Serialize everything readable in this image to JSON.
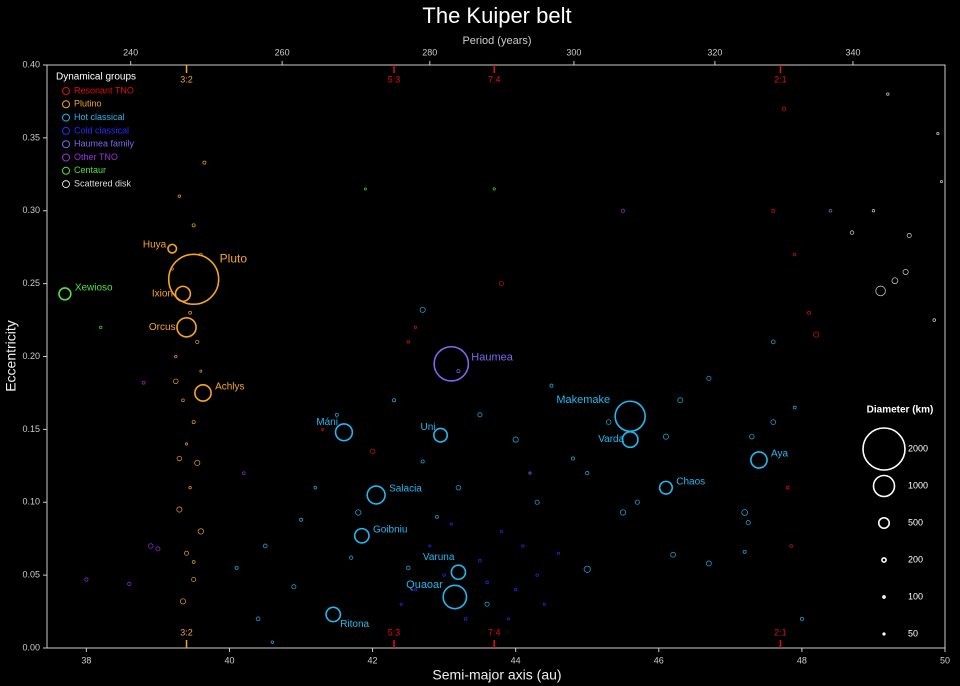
{
  "chart_data": {
    "type": "scatter",
    "title": "The Kuiper belt",
    "x_label": "Semi-major axis (au)",
    "y_label": "Eccentricity",
    "x2_label": "Period (years)",
    "xlim": [
      37.45,
      50
    ],
    "ylim": [
      0,
      0.4
    ],
    "xticks": [
      38,
      40,
      42,
      44,
      46,
      48,
      50
    ],
    "yticks": [
      {
        "value": 0,
        "label": "0.00"
      },
      {
        "value": 0.05,
        "label": "0.05"
      },
      {
        "value": 0.1,
        "label": "0.10"
      },
      {
        "value": 0.15,
        "label": "0.15"
      },
      {
        "value": 0.2,
        "label": "0.20"
      },
      {
        "value": 0.25,
        "label": "0.25"
      },
      {
        "value": 0.3,
        "label": "0.30"
      },
      {
        "value": 0.35,
        "label": "0.35"
      },
      {
        "value": 0.4,
        "label": "0.40"
      }
    ],
    "x2ticks": [
      240,
      260,
      280,
      300,
      320,
      340
    ],
    "legend_title": "Dynamical groups",
    "resonances": [
      {
        "label": "3:2",
        "x": 39.4,
        "color": "#f5a623"
      },
      {
        "label": "5:3",
        "x": 42.3,
        "color": "#e01010"
      },
      {
        "label": "7:4",
        "x": 43.7,
        "color": "#e01010"
      },
      {
        "label": "2:1",
        "x": 47.7,
        "color": "#e01010"
      }
    ],
    "size_legend": {
      "title": "Diameter (km)",
      "values": [
        2000,
        1000,
        500,
        200,
        100,
        50
      ]
    },
    "series": [
      {
        "name": "Resonant TNO",
        "color": "#e01010",
        "points": [
          [
            42.5,
            0.21,
            120
          ],
          [
            43.8,
            0.25,
            200
          ],
          [
            47.75,
            0.37,
            150
          ],
          [
            47.6,
            0.3,
            150
          ],
          [
            48.2,
            0.215,
            250
          ],
          [
            48.1,
            0.23,
            150
          ],
          [
            47.9,
            0.27,
            130
          ],
          [
            42.0,
            0.135,
            220
          ],
          [
            42.6,
            0.22,
            110
          ],
          [
            47.8,
            0.11,
            140
          ],
          [
            47.85,
            0.07,
            130
          ],
          [
            41.3,
            0.15,
            100
          ]
        ],
        "named": []
      },
      {
        "name": "Plutino",
        "color": "#f5a623",
        "points": [
          [
            39.3,
            0.31,
            120
          ],
          [
            39.5,
            0.29,
            150
          ],
          [
            39.6,
            0.27,
            130
          ],
          [
            39.2,
            0.26,
            110
          ],
          [
            39.45,
            0.23,
            140
          ],
          [
            39.55,
            0.21,
            160
          ],
          [
            39.25,
            0.2,
            120
          ],
          [
            39.6,
            0.19,
            100
          ],
          [
            39.35,
            0.17,
            130
          ],
          [
            39.5,
            0.155,
            150
          ],
          [
            39.4,
            0.14,
            110
          ],
          [
            39.3,
            0.13,
            220
          ],
          [
            39.55,
            0.127,
            250
          ],
          [
            39.45,
            0.11,
            120
          ],
          [
            39.3,
            0.095,
            250
          ],
          [
            39.6,
            0.08,
            260
          ],
          [
            39.4,
            0.065,
            200
          ],
          [
            39.5,
            0.047,
            200
          ],
          [
            39.35,
            0.032,
            250
          ],
          [
            39.65,
            0.333,
            150
          ],
          [
            39.25,
            0.183,
            220
          ],
          [
            39.5,
            0.059,
            140
          ]
        ],
        "named": [
          {
            "name": "Huya",
            "x": 39.2,
            "y": 0.274,
            "size": 406
          },
          {
            "name": "Pluto",
            "x": 39.5,
            "y": 0.253,
            "size": 2377
          },
          {
            "name": "Ixion",
            "x": 39.35,
            "y": 0.243,
            "size": 710
          },
          {
            "name": "Orcus",
            "x": 39.4,
            "y": 0.22,
            "size": 910
          },
          {
            "name": "Achlys",
            "x": 39.63,
            "y": 0.175,
            "size": 772
          }
        ]
      },
      {
        "name": "Hot classical",
        "color": "#22b8f0",
        "points": [
          [
            42.7,
            0.232,
            250
          ],
          [
            41.5,
            0.16,
            150
          ],
          [
            42.3,
            0.17,
            150
          ],
          [
            43.5,
            0.16,
            200
          ],
          [
            44.0,
            0.143,
            250
          ],
          [
            44.5,
            0.18,
            150
          ],
          [
            45.3,
            0.155,
            220
          ],
          [
            46.3,
            0.17,
            240
          ],
          [
            46.7,
            0.185,
            200
          ],
          [
            47.3,
            0.145,
            220
          ],
          [
            47.6,
            0.155,
            230
          ],
          [
            46.1,
            0.145,
            250
          ],
          [
            45.0,
            0.12,
            160
          ],
          [
            44.3,
            0.1,
            200
          ],
          [
            43.2,
            0.11,
            220
          ],
          [
            42.7,
            0.128,
            150
          ],
          [
            41.8,
            0.093,
            260
          ],
          [
            41.0,
            0.088,
            150
          ],
          [
            40.5,
            0.07,
            180
          ],
          [
            40.1,
            0.055,
            150
          ],
          [
            40.9,
            0.042,
            200
          ],
          [
            41.7,
            0.062,
            160
          ],
          [
            42.5,
            0.055,
            170
          ],
          [
            43.6,
            0.03,
            200
          ],
          [
            45.0,
            0.054,
            300
          ],
          [
            45.5,
            0.093,
            260
          ],
          [
            45.7,
            0.1,
            200
          ],
          [
            46.2,
            0.064,
            230
          ],
          [
            46.7,
            0.058,
            240
          ],
          [
            47.2,
            0.093,
            280
          ],
          [
            47.25,
            0.086,
            200
          ],
          [
            47.2,
            0.066,
            150
          ],
          [
            48.0,
            0.02,
            150
          ],
          [
            40.4,
            0.02,
            180
          ],
          [
            41.2,
            0.11,
            130
          ],
          [
            42.9,
            0.09,
            140
          ],
          [
            44.8,
            0.13,
            150
          ],
          [
            47.9,
            0.165,
            140
          ],
          [
            40.6,
            0.004,
            120
          ],
          [
            47.6,
            0.21,
            180
          ]
        ],
        "named": [
          {
            "name": "Máni",
            "x": 41.6,
            "y": 0.148,
            "size": 800
          },
          {
            "name": "Uni",
            "x": 42.95,
            "y": 0.146,
            "size": 640
          },
          {
            "name": "Makemake",
            "x": 45.6,
            "y": 0.159,
            "size": 1430
          },
          {
            "name": "Varda",
            "x": 45.6,
            "y": 0.143,
            "size": 740
          },
          {
            "name": "Aya",
            "x": 47.4,
            "y": 0.129,
            "size": 770
          },
          {
            "name": "Chaos",
            "x": 46.1,
            "y": 0.11,
            "size": 600
          },
          {
            "name": "Salacia",
            "x": 42.05,
            "y": 0.105,
            "size": 850
          },
          {
            "name": "Goibniu",
            "x": 41.85,
            "y": 0.077,
            "size": 680
          },
          {
            "name": "Varuna",
            "x": 43.2,
            "y": 0.052,
            "size": 670
          },
          {
            "name": "Quaoar",
            "x": 43.15,
            "y": 0.035,
            "size": 1110
          },
          {
            "name": "Ritona",
            "x": 41.45,
            "y": 0.023,
            "size": 680
          }
        ]
      },
      {
        "name": "Cold classical",
        "color": "#2a2aff",
        "points": [
          [
            43.0,
            0.05,
            120
          ],
          [
            43.5,
            0.06,
            130
          ],
          [
            44.0,
            0.04,
            120
          ],
          [
            43.8,
            0.08,
            110
          ],
          [
            44.3,
            0.05,
            120
          ],
          [
            42.8,
            0.07,
            100
          ],
          [
            43.3,
            0.02,
            130
          ],
          [
            44.4,
            0.03,
            110
          ],
          [
            43.9,
            0.02,
            100
          ],
          [
            44.1,
            0.07,
            120
          ],
          [
            42.6,
            0.04,
            110
          ],
          [
            43.6,
            0.045,
            130
          ],
          [
            44.6,
            0.065,
            110
          ],
          [
            43.1,
            0.085,
            100
          ],
          [
            42.4,
            0.03,
            110
          ]
        ],
        "named": []
      },
      {
        "name": "Haumea family",
        "color": "#7b68ee",
        "points": [
          [
            43.2,
            0.19,
            150
          ],
          [
            44.2,
            0.12,
            110
          ],
          [
            48.4,
            0.3,
            130
          ]
        ],
        "named": [
          {
            "name": "Haumea",
            "x": 43.1,
            "y": 0.195,
            "size": 1632
          }
        ]
      },
      {
        "name": "Other TNO",
        "color": "#9b30e0",
        "points": [
          [
            38.9,
            0.07,
            220
          ],
          [
            39.0,
            0.068,
            200
          ],
          [
            38.6,
            0.044,
            160
          ],
          [
            38.8,
            0.182,
            140
          ],
          [
            45.5,
            0.3,
            160
          ],
          [
            40.2,
            0.12,
            130
          ],
          [
            38.0,
            0.047,
            160
          ]
        ],
        "named": []
      },
      {
        "name": "Centaur",
        "color": "#50e040",
        "points": [
          [
            38.2,
            0.22,
            120
          ],
          [
            43.7,
            0.315,
            110
          ],
          [
            41.9,
            0.315,
            100
          ]
        ],
        "named": [
          {
            "name": "Xewioso",
            "x": 37.7,
            "y": 0.243,
            "size": 565
          }
        ]
      },
      {
        "name": "Scattered disk",
        "color": "#dddddd",
        "points": [
          [
            49.1,
            0.245,
            460
          ],
          [
            49.3,
            0.252,
            280
          ],
          [
            49.45,
            0.258,
            250
          ],
          [
            49.5,
            0.283,
            200
          ],
          [
            48.7,
            0.285,
            170
          ],
          [
            49.0,
            0.3,
            120
          ],
          [
            49.85,
            0.225,
            130
          ],
          [
            49.2,
            0.38,
            120
          ],
          [
            49.9,
            0.353,
            110
          ],
          [
            49.95,
            0.32,
            100
          ]
        ],
        "named": []
      }
    ]
  }
}
